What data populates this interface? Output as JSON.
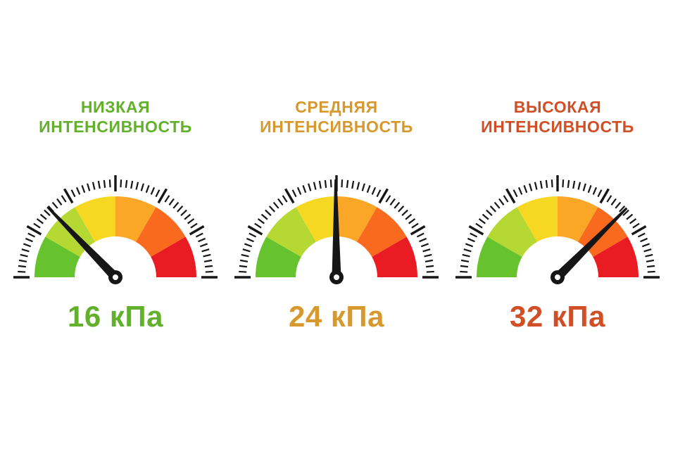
{
  "page": {
    "background": "#ffffff"
  },
  "chart_data": {
    "type": "gauge",
    "title": "",
    "categories": [
      "НИЗКАЯ ИНТЕНСИВНОСТЬ",
      "СРЕДНЯЯ ИНТЕНСИВНОСТЬ",
      "ВЫСОКАЯ ИНТЕНСИВНОСТЬ"
    ],
    "values": [
      16,
      24,
      32
    ],
    "value_labels": [
      "16 кПа",
      "24 кПа",
      "32 кПа"
    ],
    "unit": "кПа",
    "needle_fractions": [
      0.256,
      0.497,
      0.75
    ],
    "scale": "semicircular 180-degree dial, 6 equal color segments green to red, no numeric tick labels",
    "legend_position": "none"
  },
  "gauge_style": {
    "outer_radius": 115,
    "inner_radius": 58,
    "segment_colors": [
      "#66c22d",
      "#b6d833",
      "#f6d822",
      "#faa728",
      "#f9691e",
      "#e91c24"
    ],
    "segment_sweep_deg": 30,
    "tick_color": "#161616",
    "minor_divisions_per_segment": 9,
    "minor_tick_inner_radius": 128,
    "minor_tick_outer_radius": 139,
    "major_tick_inner_radius": 122,
    "major_tick_outer_radius": 145,
    "needle_color": "#161616",
    "needle_length": 139,
    "hub_radius": 10,
    "hub_hole_color": "#ffffff",
    "hub_hole_radius": 4
  },
  "gauges": [
    {
      "id": "low",
      "title_line1": "НИЗКАЯ",
      "title_line2": "ИНТЕНСИВНОСТЬ",
      "value_label": "16 кПа",
      "accent_color": "#63b02c",
      "needle_angle_deg": 134
    },
    {
      "id": "medium",
      "title_line1": "СРЕДНЯЯ",
      "title_line2": "ИНТЕНСИВНОСТЬ",
      "value_label": "24 кПа",
      "accent_color": "#d7992e",
      "needle_angle_deg": 90.5
    },
    {
      "id": "high",
      "title_line1": "ВЫСОКАЯ",
      "title_line2": "ИНТЕНСИВНОСТЬ",
      "value_label": "32 кПа",
      "accent_color": "#d04f26",
      "needle_angle_deg": 45
    }
  ]
}
